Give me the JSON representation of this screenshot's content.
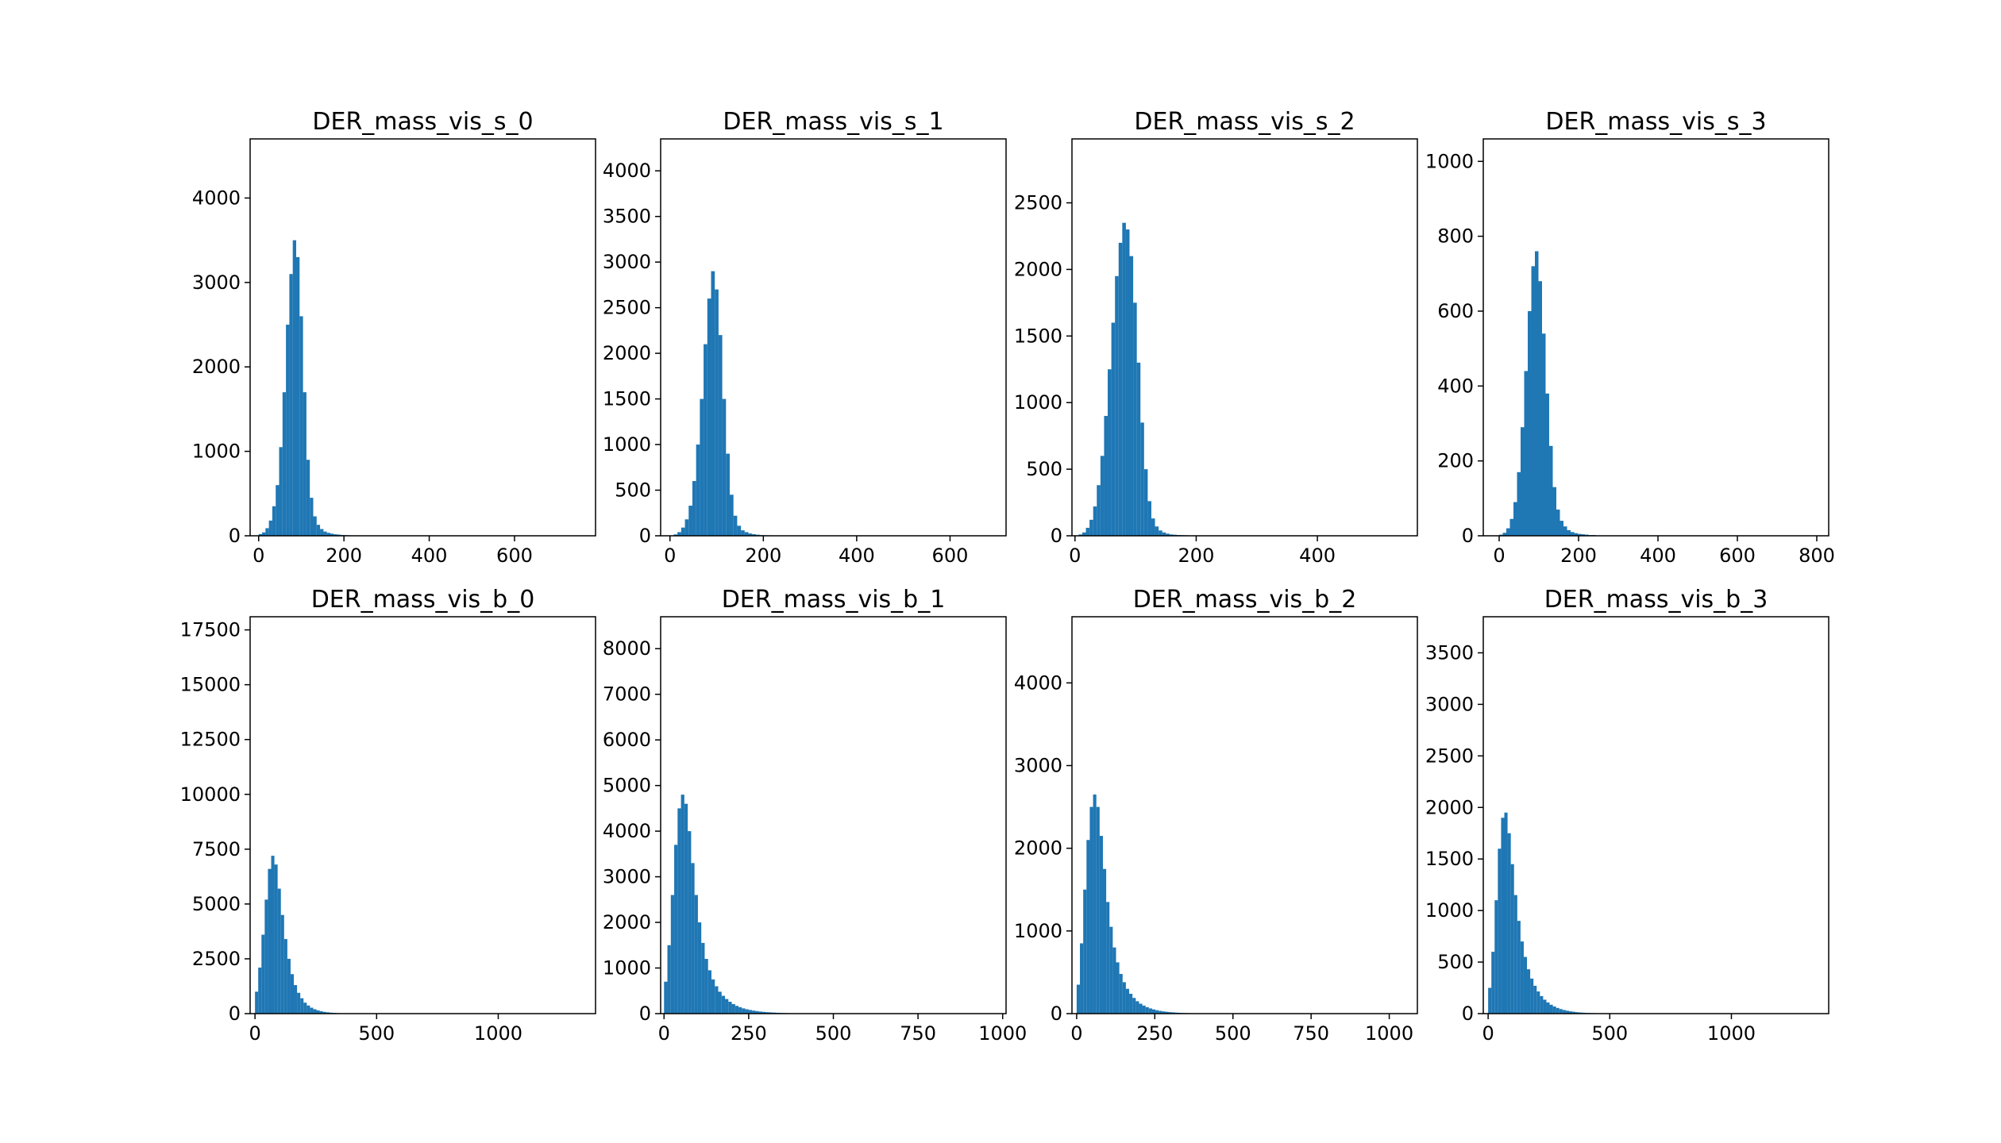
{
  "chart_data": [
    {
      "type": "bar",
      "title": "DER_mass_vis_s_0",
      "xlabel": "",
      "ylabel": "",
      "xlim": [
        -20,
        790
      ],
      "ylim": [
        0,
        4700
      ],
      "xticks": [
        0,
        200,
        400,
        600
      ],
      "yticks": [
        0,
        1000,
        2000,
        3000,
        4000
      ],
      "bin_width": 8,
      "bins": [
        [
          0,
          20
        ],
        [
          8,
          40
        ],
        [
          16,
          90
        ],
        [
          24,
          180
        ],
        [
          32,
          350
        ],
        [
          40,
          600
        ],
        [
          48,
          1050
        ],
        [
          56,
          1700
        ],
        [
          64,
          2500
        ],
        [
          72,
          3100
        ],
        [
          80,
          3500
        ],
        [
          88,
          3300
        ],
        [
          96,
          2600
        ],
        [
          104,
          1700
        ],
        [
          112,
          900
        ],
        [
          120,
          450
        ],
        [
          128,
          230
        ],
        [
          136,
          130
        ],
        [
          144,
          80
        ],
        [
          152,
          50
        ],
        [
          160,
          35
        ],
        [
          168,
          25
        ],
        [
          176,
          18
        ],
        [
          184,
          14
        ],
        [
          192,
          10
        ],
        [
          200,
          8
        ],
        [
          208,
          6
        ],
        [
          216,
          5
        ],
        [
          224,
          4
        ],
        [
          232,
          3
        ],
        [
          240,
          2
        ],
        [
          256,
          1
        ]
      ],
      "color": "#1f77b4"
    },
    {
      "type": "bar",
      "title": "DER_mass_vis_s_1",
      "xlabel": "",
      "ylabel": "",
      "xlim": [
        -20,
        720
      ],
      "ylim": [
        0,
        4350
      ],
      "xticks": [
        0,
        200,
        400,
        600
      ],
      "yticks": [
        0,
        500,
        1000,
        1500,
        2000,
        2500,
        3000,
        3500,
        4000
      ],
      "bin_width": 8,
      "bins": [
        [
          8,
          15
        ],
        [
          16,
          40
        ],
        [
          24,
          90
        ],
        [
          32,
          180
        ],
        [
          40,
          330
        ],
        [
          48,
          600
        ],
        [
          56,
          1000
        ],
        [
          64,
          1500
        ],
        [
          72,
          2100
        ],
        [
          80,
          2600
        ],
        [
          88,
          2900
        ],
        [
          96,
          2700
        ],
        [
          104,
          2200
        ],
        [
          112,
          1500
        ],
        [
          120,
          900
        ],
        [
          128,
          450
        ],
        [
          136,
          220
        ],
        [
          144,
          110
        ],
        [
          152,
          60
        ],
        [
          160,
          40
        ],
        [
          168,
          25
        ],
        [
          176,
          18
        ],
        [
          184,
          12
        ],
        [
          192,
          8
        ],
        [
          200,
          6
        ],
        [
          208,
          5
        ],
        [
          216,
          4
        ],
        [
          224,
          3
        ],
        [
          232,
          2
        ],
        [
          240,
          2
        ],
        [
          256,
          1
        ],
        [
          272,
          1
        ],
        [
          288,
          1
        ]
      ],
      "color": "#1f77b4"
    },
    {
      "type": "bar",
      "title": "DER_mass_vis_s_2",
      "xlabel": "",
      "ylabel": "",
      "xlim": [
        -5,
        565
      ],
      "ylim": [
        0,
        2980
      ],
      "xticks": [
        0,
        200,
        400
      ],
      "yticks": [
        0,
        500,
        1000,
        1500,
        2000,
        2500
      ],
      "bin_width": 6,
      "bins": [
        [
          6,
          10
        ],
        [
          12,
          25
        ],
        [
          18,
          60
        ],
        [
          24,
          120
        ],
        [
          30,
          220
        ],
        [
          36,
          380
        ],
        [
          42,
          600
        ],
        [
          48,
          900
        ],
        [
          54,
          1250
        ],
        [
          60,
          1600
        ],
        [
          66,
          1950
        ],
        [
          72,
          2200
        ],
        [
          78,
          2350
        ],
        [
          84,
          2300
        ],
        [
          90,
          2100
        ],
        [
          96,
          1750
        ],
        [
          102,
          1300
        ],
        [
          108,
          850
        ],
        [
          114,
          500
        ],
        [
          120,
          260
        ],
        [
          126,
          130
        ],
        [
          132,
          70
        ],
        [
          138,
          40
        ],
        [
          144,
          25
        ],
        [
          150,
          16
        ],
        [
          156,
          10
        ],
        [
          162,
          8
        ],
        [
          168,
          6
        ],
        [
          174,
          5
        ],
        [
          180,
          4
        ],
        [
          186,
          3
        ],
        [
          192,
          2
        ],
        [
          198,
          2
        ],
        [
          204,
          1
        ],
        [
          210,
          1
        ],
        [
          216,
          1
        ],
        [
          222,
          1
        ]
      ],
      "color": "#1f77b4"
    },
    {
      "type": "bar",
      "title": "DER_mass_vis_s_3",
      "xlabel": "",
      "ylabel": "",
      "xlim": [
        -40,
        830
      ],
      "ylim": [
        0,
        1060
      ],
      "xticks": [
        0,
        200,
        400,
        600,
        800
      ],
      "yticks": [
        0,
        200,
        400,
        600,
        800,
        1000
      ],
      "bin_width": 9,
      "bins": [
        [
          0,
          3
        ],
        [
          9,
          8
        ],
        [
          18,
          20
        ],
        [
          27,
          45
        ],
        [
          36,
          90
        ],
        [
          45,
          170
        ],
        [
          54,
          290
        ],
        [
          63,
          440
        ],
        [
          72,
          600
        ],
        [
          81,
          720
        ],
        [
          90,
          760
        ],
        [
          99,
          680
        ],
        [
          108,
          540
        ],
        [
          117,
          380
        ],
        [
          126,
          240
        ],
        [
          135,
          130
        ],
        [
          144,
          70
        ],
        [
          153,
          40
        ],
        [
          162,
          25
        ],
        [
          171,
          15
        ],
        [
          180,
          10
        ],
        [
          189,
          7
        ],
        [
          198,
          5
        ],
        [
          207,
          4
        ],
        [
          216,
          3
        ],
        [
          225,
          2
        ],
        [
          234,
          2
        ],
        [
          243,
          1
        ],
        [
          252,
          1
        ],
        [
          270,
          1
        ]
      ],
      "color": "#1f77b4"
    },
    {
      "type": "bar",
      "title": "DER_mass_vis_b_0",
      "xlabel": "",
      "ylabel": "",
      "xlim": [
        -20,
        1400
      ],
      "ylim": [
        0,
        18100
      ],
      "xticks": [
        0,
        500,
        1000
      ],
      "yticks": [
        0,
        2500,
        5000,
        7500,
        10000,
        12500,
        15000,
        17500
      ],
      "bin_width": 13.3,
      "bins": [
        [
          0,
          1000
        ],
        [
          13.3,
          2100
        ],
        [
          26.6,
          3600
        ],
        [
          39.9,
          5200
        ],
        [
          53.2,
          6600
        ],
        [
          66.5,
          7200
        ],
        [
          79.8,
          6800
        ],
        [
          93.1,
          5700
        ],
        [
          106.4,
          4500
        ],
        [
          119.7,
          3400
        ],
        [
          133,
          2500
        ],
        [
          146.3,
          1800
        ],
        [
          159.6,
          1300
        ],
        [
          172.9,
          950
        ],
        [
          186.2,
          700
        ],
        [
          199.5,
          500
        ],
        [
          212.8,
          370
        ],
        [
          226.1,
          270
        ],
        [
          239.4,
          200
        ],
        [
          252.7,
          150
        ],
        [
          266,
          110
        ],
        [
          279.3,
          80
        ],
        [
          292.6,
          60
        ],
        [
          305.9,
          45
        ],
        [
          319.2,
          35
        ],
        [
          332.5,
          25
        ],
        [
          345.8,
          18
        ],
        [
          359.1,
          13
        ],
        [
          372.4,
          10
        ],
        [
          385.7,
          8
        ],
        [
          399,
          6
        ],
        [
          412.3,
          5
        ],
        [
          425.6,
          4
        ],
        [
          438.9,
          3
        ],
        [
          452.2,
          2
        ],
        [
          465.5,
          2
        ],
        [
          478.8,
          1
        ],
        [
          492.1,
          1
        ],
        [
          505.4,
          1
        ]
      ],
      "color": "#1f77b4"
    },
    {
      "type": "bar",
      "title": "DER_mass_vis_b_1",
      "xlabel": "",
      "ylabel": "",
      "xlim": [
        -10,
        1010
      ],
      "ylim": [
        0,
        8700
      ],
      "xticks": [
        0,
        250,
        500,
        750,
        1000
      ],
      "yticks": [
        0,
        1000,
        2000,
        3000,
        4000,
        5000,
        6000,
        7000,
        8000
      ],
      "bin_width": 10,
      "bins": [
        [
          0,
          700
        ],
        [
          10,
          1500
        ],
        [
          20,
          2600
        ],
        [
          30,
          3700
        ],
        [
          40,
          4500
        ],
        [
          50,
          4800
        ],
        [
          60,
          4600
        ],
        [
          70,
          4000
        ],
        [
          80,
          3300
        ],
        [
          90,
          2600
        ],
        [
          100,
          2000
        ],
        [
          110,
          1550
        ],
        [
          120,
          1200
        ],
        [
          130,
          950
        ],
        [
          140,
          750
        ],
        [
          150,
          600
        ],
        [
          160,
          480
        ],
        [
          170,
          390
        ],
        [
          180,
          320
        ],
        [
          190,
          260
        ],
        [
          200,
          210
        ],
        [
          210,
          170
        ],
        [
          220,
          140
        ],
        [
          230,
          115
        ],
        [
          240,
          95
        ],
        [
          250,
          80
        ],
        [
          260,
          66
        ],
        [
          270,
          55
        ],
        [
          280,
          45
        ],
        [
          290,
          38
        ],
        [
          300,
          32
        ],
        [
          310,
          27
        ],
        [
          320,
          23
        ],
        [
          330,
          19
        ],
        [
          340,
          16
        ],
        [
          350,
          13
        ],
        [
          360,
          11
        ],
        [
          370,
          9
        ],
        [
          380,
          8
        ],
        [
          390,
          7
        ],
        [
          400,
          6
        ],
        [
          410,
          5
        ],
        [
          420,
          4
        ],
        [
          430,
          3
        ],
        [
          440,
          3
        ],
        [
          450,
          2
        ],
        [
          460,
          2
        ],
        [
          470,
          1
        ],
        [
          480,
          1
        ],
        [
          490,
          1
        ]
      ],
      "color": "#1f77b4"
    },
    {
      "type": "bar",
      "title": "DER_mass_vis_b_2",
      "xlabel": "",
      "ylabel": "",
      "xlim": [
        -15,
        1090
      ],
      "ylim": [
        0,
        4800
      ],
      "xticks": [
        0,
        250,
        500,
        750,
        1000
      ],
      "yticks": [
        0,
        1000,
        2000,
        3000,
        4000
      ],
      "bin_width": 10.5,
      "bins": [
        [
          0,
          350
        ],
        [
          10.5,
          850
        ],
        [
          21,
          1500
        ],
        [
          31.5,
          2100
        ],
        [
          42,
          2500
        ],
        [
          52.5,
          2650
        ],
        [
          63,
          2500
        ],
        [
          73.5,
          2150
        ],
        [
          84,
          1750
        ],
        [
          94.5,
          1350
        ],
        [
          105,
          1050
        ],
        [
          115.5,
          800
        ],
        [
          126,
          620
        ],
        [
          136.5,
          480
        ],
        [
          147,
          380
        ],
        [
          157.5,
          300
        ],
        [
          168,
          240
        ],
        [
          178.5,
          190
        ],
        [
          189,
          150
        ],
        [
          199.5,
          120
        ],
        [
          210,
          97
        ],
        [
          220.5,
          78
        ],
        [
          231,
          63
        ],
        [
          241.5,
          51
        ],
        [
          252,
          41
        ],
        [
          262.5,
          33
        ],
        [
          273,
          27
        ],
        [
          283.5,
          22
        ],
        [
          294,
          18
        ],
        [
          304.5,
          15
        ],
        [
          315,
          12
        ],
        [
          325.5,
          10
        ],
        [
          336,
          8
        ],
        [
          346.5,
          7
        ],
        [
          357,
          6
        ],
        [
          367.5,
          5
        ],
        [
          378,
          4
        ],
        [
          388.5,
          3
        ],
        [
          399,
          3
        ],
        [
          409.5,
          2
        ],
        [
          420,
          2
        ],
        [
          430.5,
          1
        ],
        [
          441,
          1
        ]
      ],
      "color": "#1f77b4"
    },
    {
      "type": "bar",
      "title": "DER_mass_vis_b_3",
      "xlabel": "",
      "ylabel": "",
      "xlim": [
        -20,
        1400
      ],
      "ylim": [
        0,
        3850
      ],
      "xticks": [
        0,
        500,
        1000
      ],
      "yticks": [
        0,
        500,
        1000,
        1500,
        2000,
        2500,
        3000,
        3500
      ],
      "bin_width": 13.3,
      "bins": [
        [
          0,
          250
        ],
        [
          13.3,
          600
        ],
        [
          26.6,
          1100
        ],
        [
          39.9,
          1600
        ],
        [
          53.2,
          1900
        ],
        [
          66.5,
          1950
        ],
        [
          79.8,
          1750
        ],
        [
          93.1,
          1450
        ],
        [
          106.4,
          1150
        ],
        [
          119.7,
          900
        ],
        [
          133,
          700
        ],
        [
          146.3,
          550
        ],
        [
          159.6,
          430
        ],
        [
          172.9,
          340
        ],
        [
          186.2,
          270
        ],
        [
          199.5,
          215
        ],
        [
          212.8,
          170
        ],
        [
          226.1,
          135
        ],
        [
          239.4,
          108
        ],
        [
          252.7,
          86
        ],
        [
          266,
          69
        ],
        [
          279.3,
          55
        ],
        [
          292.6,
          44
        ],
        [
          305.9,
          35
        ],
        [
          319.2,
          28
        ],
        [
          332.5,
          22
        ],
        [
          345.8,
          18
        ],
        [
          359.1,
          14
        ],
        [
          372.4,
          11
        ],
        [
          385.7,
          9
        ],
        [
          399,
          7
        ],
        [
          412.3,
          6
        ],
        [
          425.6,
          5
        ],
        [
          438.9,
          4
        ],
        [
          452.2,
          3
        ],
        [
          465.5,
          2
        ],
        [
          478.8,
          2
        ],
        [
          492.1,
          1
        ],
        [
          505.4,
          1
        ]
      ],
      "color": "#1f77b4"
    }
  ]
}
